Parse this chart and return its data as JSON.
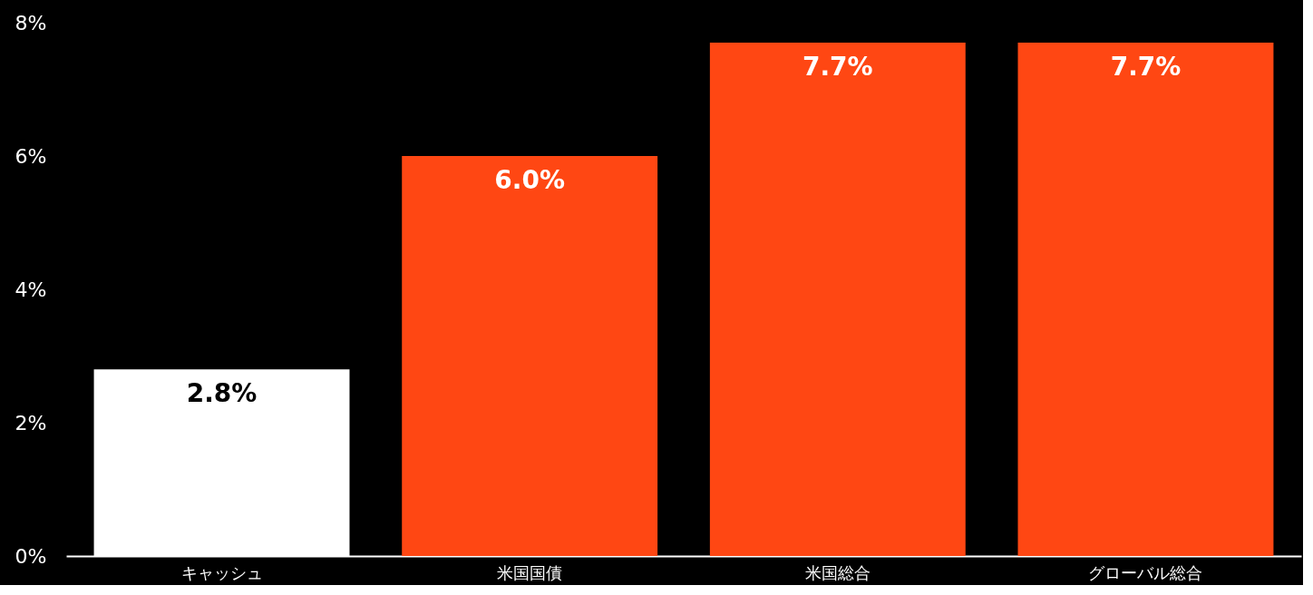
{
  "chart_data": {
    "type": "bar",
    "categories": [
      "キャッシュ",
      "米国国債",
      "米国総合",
      "グローバル総合"
    ],
    "values": [
      2.8,
      6.0,
      7.7,
      7.7
    ],
    "colors": [
      "#ffffff",
      "#ff4713",
      "#ff4713",
      "#ff4713"
    ],
    "value_labels": [
      "2.8%",
      "6.0%",
      "7.7%",
      "7.7%"
    ],
    "ylim": [
      0,
      8
    ],
    "yticks": [
      {
        "value": 0,
        "label": "0%"
      },
      {
        "value": 2,
        "label": "2%"
      },
      {
        "value": 4,
        "label": "4%"
      },
      {
        "value": 6,
        "label": "6%"
      },
      {
        "value": 8,
        "label": "8%"
      }
    ],
    "grid": false
  }
}
